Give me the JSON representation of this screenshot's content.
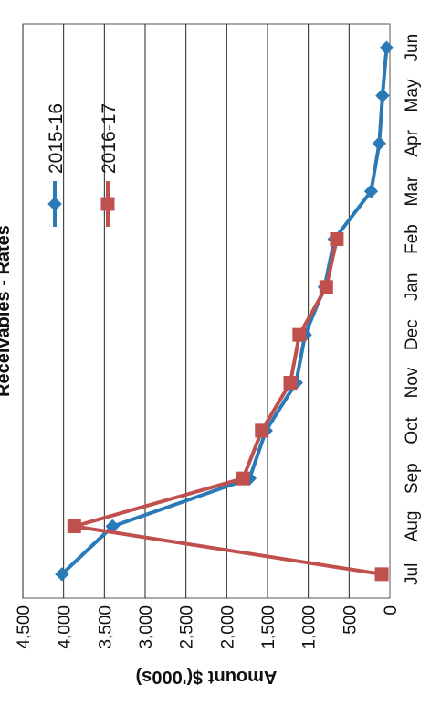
{
  "chart_data": {
    "type": "line",
    "title": "Receivables - Rates",
    "xlabel": "",
    "ylabel": "Amount $('000s)",
    "categories": [
      "Jul",
      "Aug",
      "Sep",
      "Oct",
      "Nov",
      "Dec",
      "Jan",
      "Feb",
      "Mar",
      "Apr",
      "May",
      "Jun"
    ],
    "ylim": [
      0,
      4500
    ],
    "yticks": [
      0,
      500,
      1000,
      1500,
      2000,
      2500,
      3000,
      3500,
      4000,
      4500
    ],
    "ytick_labels": [
      "0",
      "500",
      "1,000",
      "1,500",
      "2,000",
      "2,500",
      "3,000",
      "3,500",
      "4,000",
      "4,500"
    ],
    "grid": true,
    "legend_position": "right",
    "series": [
      {
        "name": "2015-16",
        "color": "#2a7ab8",
        "marker": "diamond",
        "values": [
          4020,
          3400,
          1720,
          1520,
          1150,
          1040,
          800,
          680,
          230,
          130,
          90,
          40
        ]
      },
      {
        "name": "2016-17",
        "color": "#c0504d",
        "marker": "square",
        "values": [
          100,
          3870,
          1800,
          1570,
          1220,
          1110,
          780,
          650,
          null,
          null,
          null,
          null
        ]
      }
    ]
  }
}
